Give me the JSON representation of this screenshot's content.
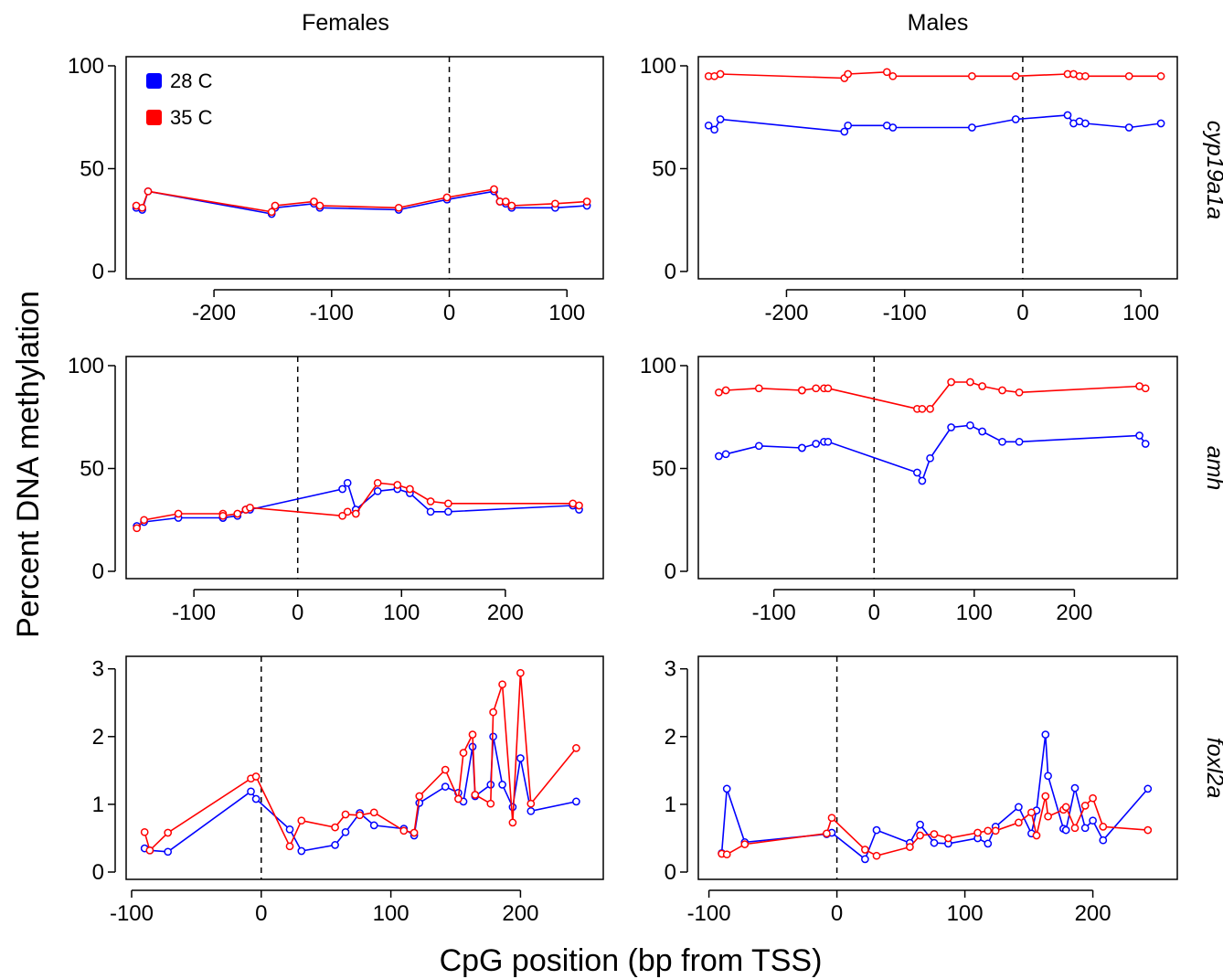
{
  "figure": {
    "col_titles": [
      "Females",
      "Males"
    ],
    "row_labels": [
      "cyp19a1a",
      "amh",
      "foxl2a"
    ],
    "xlabel": "CpG position (bp from TSS)",
    "ylabel": "Percent DNA methylation",
    "legend": [
      {
        "label": "28 C",
        "color": "#0000ff"
      },
      {
        "label": "35 C",
        "color": "#ff0000"
      }
    ],
    "tss_line_x": 0
  },
  "chart_data": [
    {
      "type": "line",
      "panel": "Females cyp19a1a",
      "xlim": [
        -270,
        120
      ],
      "ylim": [
        0,
        100
      ],
      "xticks": [
        -200,
        -100,
        0,
        100
      ],
      "yticks": [
        0,
        50,
        100
      ],
      "series": [
        {
          "name": "28 C",
          "color": "#0000ff",
          "x": [
            -266,
            -261,
            -256,
            -151,
            -148,
            -115,
            -110,
            -43,
            -2,
            38,
            43,
            48,
            53,
            90,
            117
          ],
          "y": [
            31,
            30,
            39,
            28,
            31,
            33,
            31,
            30,
            35,
            39,
            34,
            33,
            31,
            31,
            32
          ]
        },
        {
          "name": "35 C",
          "color": "#ff0000",
          "x": [
            -266,
            -261,
            -256,
            -151,
            -148,
            -115,
            -110,
            -43,
            -2,
            38,
            43,
            48,
            53,
            90,
            117
          ],
          "y": [
            32,
            31,
            39,
            29,
            32,
            34,
            32,
            31,
            36,
            40,
            34,
            34,
            32,
            33,
            34
          ]
        }
      ]
    },
    {
      "type": "line",
      "panel": "Males cyp19a1a",
      "xlim": [
        -270,
        120
      ],
      "ylim": [
        0,
        100
      ],
      "xticks": [
        -200,
        -100,
        0,
        100
      ],
      "yticks": [
        0,
        50,
        100
      ],
      "series": [
        {
          "name": "28 C",
          "color": "#0000ff",
          "x": [
            -266,
            -261,
            -256,
            -151,
            -148,
            -115,
            -110,
            -43,
            -6,
            38,
            43,
            48,
            53,
            90,
            117
          ],
          "y": [
            71,
            69,
            74,
            68,
            71,
            71,
            70,
            70,
            74,
            76,
            72,
            73,
            72,
            70,
            72
          ]
        },
        {
          "name": "35 C",
          "color": "#ff0000",
          "x": [
            -266,
            -261,
            -256,
            -151,
            -148,
            -115,
            -110,
            -43,
            -6,
            38,
            43,
            48,
            53,
            90,
            117
          ],
          "y": [
            95,
            95,
            96,
            94,
            96,
            97,
            95,
            95,
            95,
            96,
            96,
            95,
            95,
            95,
            95
          ]
        }
      ]
    },
    {
      "type": "line",
      "panel": "Females amh",
      "xlim": [
        -160,
        282
      ],
      "ylim": [
        0,
        100
      ],
      "xticks": [
        -100,
        0,
        100,
        200
      ],
      "yticks": [
        0,
        50,
        100
      ],
      "series": [
        {
          "name": "28 C",
          "color": "#0000ff",
          "x": [
            -155,
            -148,
            -115,
            -72,
            -72,
            -58,
            -50,
            -46,
            43,
            48,
            56,
            77,
            96,
            108,
            128,
            145,
            265,
            271
          ],
          "y": [
            22,
            24,
            26,
            26,
            26,
            27,
            30,
            30,
            40,
            43,
            30,
            39,
            40,
            38,
            29,
            29,
            32,
            30
          ]
        },
        {
          "name": "35 C",
          "color": "#ff0000",
          "x": [
            -155,
            -148,
            -115,
            -72,
            -72,
            -58,
            -50,
            -46,
            43,
            48,
            56,
            77,
            96,
            108,
            128,
            145,
            265,
            271
          ],
          "y": [
            21,
            25,
            28,
            28,
            27,
            28,
            30,
            31,
            27,
            29,
            28,
            43,
            42,
            40,
            34,
            33,
            33,
            32
          ]
        }
      ]
    },
    {
      "type": "line",
      "panel": "Males amh",
      "xlim": [
        -170,
        290
      ],
      "ylim": [
        0,
        100
      ],
      "xticks": [
        -100,
        0,
        100,
        200
      ],
      "yticks": [
        0,
        50,
        100
      ],
      "series": [
        {
          "name": "28 C",
          "color": "#0000ff",
          "x": [
            -155,
            -148,
            -115,
            -72,
            -72,
            -58,
            -50,
            -46,
            43,
            48,
            56,
            77,
            96,
            108,
            128,
            145,
            265,
            271
          ],
          "y": [
            56,
            57,
            61,
            60,
            60,
            62,
            63,
            63,
            48,
            44,
            55,
            70,
            71,
            68,
            63,
            63,
            66,
            62
          ]
        },
        {
          "name": "35 C",
          "color": "#ff0000",
          "x": [
            -155,
            -148,
            -115,
            -72,
            -72,
            -58,
            -50,
            -46,
            43,
            48,
            56,
            77,
            96,
            108,
            128,
            145,
            265,
            271
          ],
          "y": [
            87,
            88,
            89,
            88,
            88,
            89,
            89,
            89,
            79,
            79,
            79,
            92,
            92,
            90,
            88,
            87,
            90,
            89
          ]
        }
      ]
    },
    {
      "type": "line",
      "panel": "Females foxl2a",
      "xlim": [
        -100,
        254
      ],
      "ylim": [
        0,
        3.05
      ],
      "xticks": [
        -100,
        0,
        100,
        200
      ],
      "yticks": [
        0,
        1,
        2,
        3
      ],
      "series": [
        {
          "name": "28 C",
          "color": "#0000ff",
          "x": [
            -90,
            -86,
            -72,
            -8,
            -4,
            22,
            31,
            57,
            65,
            76,
            87,
            110,
            118,
            122,
            142,
            152,
            156,
            163,
            165,
            177,
            179,
            186,
            194,
            200,
            208,
            243
          ],
          "y": [
            0.35,
            0.32,
            0.3,
            1.19,
            1.08,
            0.63,
            0.31,
            0.4,
            0.59,
            0.87,
            0.69,
            0.64,
            0.54,
            1.02,
            1.26,
            1.17,
            1.04,
            1.85,
            1.12,
            1.29,
            2.0,
            1.29,
            0.96,
            1.68,
            0.9,
            1.04
          ]
        },
        {
          "name": "35 C",
          "color": "#ff0000",
          "x": [
            -90,
            -86,
            -72,
            -8,
            -4,
            22,
            31,
            57,
            65,
            76,
            87,
            110,
            118,
            122,
            142,
            152,
            156,
            163,
            165,
            177,
            179,
            186,
            194,
            200,
            208,
            243
          ],
          "y": [
            0.59,
            0.32,
            0.58,
            1.38,
            1.41,
            0.38,
            0.76,
            0.66,
            0.85,
            0.84,
            0.88,
            0.61,
            0.58,
            1.12,
            1.51,
            1.08,
            1.76,
            2.03,
            1.14,
            1.01,
            2.36,
            2.77,
            0.73,
            2.94,
            1.01,
            1.83
          ]
        }
      ]
    },
    {
      "type": "line",
      "panel": "Males foxl2a",
      "xlim": [
        -104,
        256
      ],
      "ylim": [
        0,
        3.05
      ],
      "xticks": [
        -100,
        0,
        100,
        200
      ],
      "yticks": [
        0,
        1,
        2,
        3
      ],
      "series": [
        {
          "name": "28 C",
          "color": "#0000ff",
          "x": [
            -90,
            -86,
            -72,
            -8,
            -4,
            22,
            31,
            57,
            65,
            76,
            87,
            110,
            118,
            124,
            142,
            152,
            156,
            163,
            165,
            177,
            179,
            186,
            194,
            200,
            208,
            243
          ],
          "y": [
            0.28,
            1.23,
            0.44,
            0.56,
            0.58,
            0.19,
            0.62,
            0.43,
            0.7,
            0.43,
            0.42,
            0.5,
            0.42,
            0.67,
            0.96,
            0.57,
            0.91,
            2.03,
            1.42,
            0.64,
            0.62,
            1.24,
            0.65,
            0.76,
            0.47,
            1.23
          ]
        },
        {
          "name": "35 C",
          "color": "#ff0000",
          "x": [
            -90,
            -86,
            -72,
            -8,
            -4,
            22,
            31,
            57,
            65,
            76,
            87,
            110,
            118,
            124,
            142,
            152,
            156,
            163,
            165,
            177,
            179,
            186,
            194,
            200,
            208,
            243
          ],
          "y": [
            0.27,
            0.26,
            0.41,
            0.57,
            0.8,
            0.33,
            0.24,
            0.37,
            0.54,
            0.56,
            0.5,
            0.58,
            0.61,
            0.61,
            0.73,
            0.88,
            0.54,
            1.12,
            0.82,
            0.92,
            0.96,
            0.65,
            0.98,
            1.09,
            0.67,
            0.62
          ]
        }
      ]
    }
  ]
}
